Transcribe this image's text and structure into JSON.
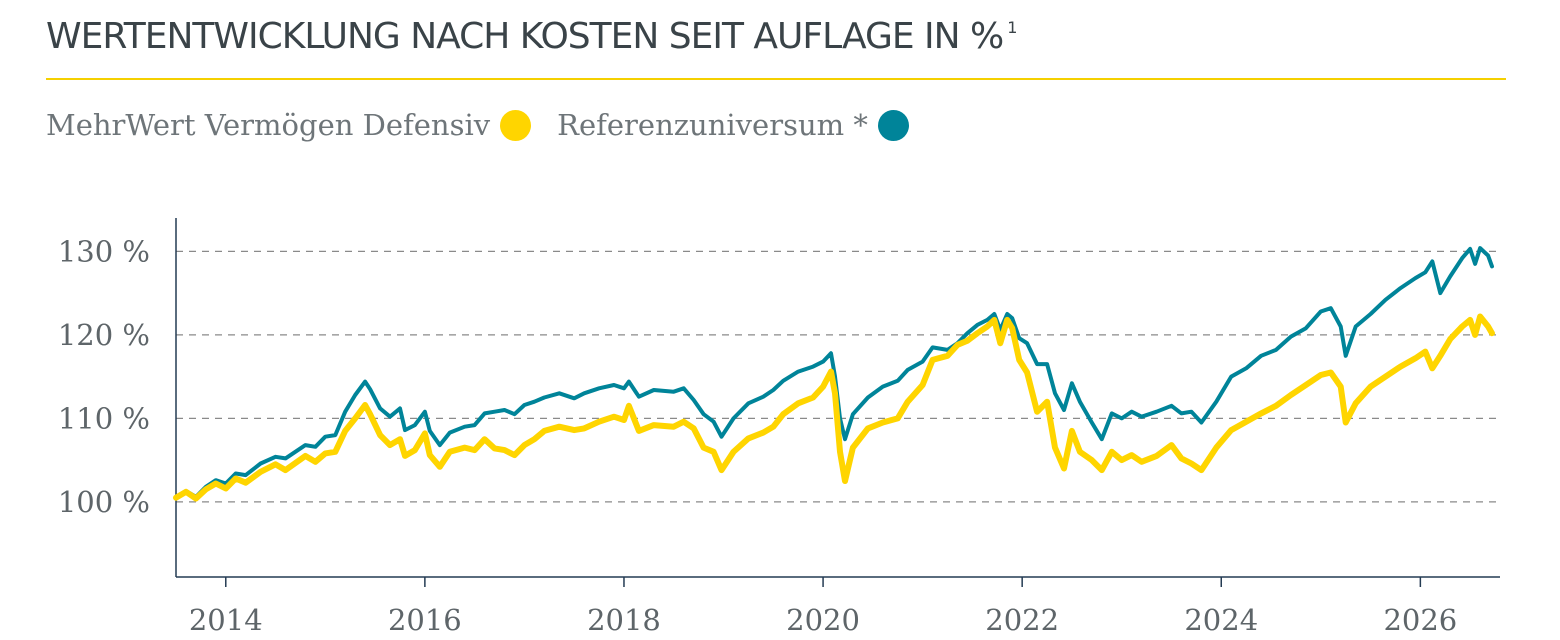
{
  "header": {
    "title": "WERTENTWICKLUNG NACH KOSTEN SEIT AUFLAGE IN %",
    "footnote_mark": "1"
  },
  "legend": {
    "items": [
      {
        "label": "MehrWert Vermögen Defensiv",
        "color": "#ffd500"
      },
      {
        "label": "Referenzuniversum *",
        "color": "#008499"
      }
    ]
  },
  "chart_data": {
    "type": "line",
    "xlim": [
      2013.5,
      2026.8
    ],
    "ylim": [
      91,
      134
    ],
    "y_ticks": [
      {
        "value": 100,
        "label": "100 %"
      },
      {
        "value": 110,
        "label": "110 %"
      },
      {
        "value": 120,
        "label": "120 %"
      },
      {
        "value": 130,
        "label": "130 %"
      }
    ],
    "x_ticks": [
      {
        "value": 2014,
        "label": "2014"
      },
      {
        "value": 2016,
        "label": "2016"
      },
      {
        "value": 2018,
        "label": "2018"
      },
      {
        "value": 2020,
        "label": "2020"
      },
      {
        "value": 2022,
        "label": "2022"
      },
      {
        "value": 2024,
        "label": "2024"
      },
      {
        "value": 2026,
        "label": "2026"
      }
    ],
    "grid": "horizontal-dashed",
    "series": [
      {
        "name": "MehrWert Vermögen Defensiv",
        "color": "#ffd500",
        "points": [
          [
            2013.5,
            100.5
          ],
          [
            2013.6,
            101.2
          ],
          [
            2013.7,
            100.4
          ],
          [
            2013.8,
            101.5
          ],
          [
            2013.9,
            102.2
          ],
          [
            2014.0,
            101.6
          ],
          [
            2014.1,
            102.8
          ],
          [
            2014.2,
            102.3
          ],
          [
            2014.35,
            103.6
          ],
          [
            2014.5,
            104.5
          ],
          [
            2014.6,
            103.8
          ],
          [
            2014.8,
            105.5
          ],
          [
            2014.9,
            104.8
          ],
          [
            2015.0,
            105.8
          ],
          [
            2015.1,
            106.0
          ],
          [
            2015.2,
            108.5
          ],
          [
            2015.3,
            110.0
          ],
          [
            2015.4,
            111.6
          ],
          [
            2015.45,
            110.5
          ],
          [
            2015.55,
            108.0
          ],
          [
            2015.65,
            106.8
          ],
          [
            2015.75,
            107.5
          ],
          [
            2015.8,
            105.5
          ],
          [
            2015.9,
            106.2
          ],
          [
            2016.0,
            108.2
          ],
          [
            2016.05,
            105.6
          ],
          [
            2016.15,
            104.2
          ],
          [
            2016.25,
            106.0
          ],
          [
            2016.4,
            106.5
          ],
          [
            2016.5,
            106.2
          ],
          [
            2016.6,
            107.5
          ],
          [
            2016.7,
            106.4
          ],
          [
            2016.8,
            106.2
          ],
          [
            2016.9,
            105.6
          ],
          [
            2017.0,
            106.8
          ],
          [
            2017.1,
            107.5
          ],
          [
            2017.2,
            108.5
          ],
          [
            2017.35,
            109.0
          ],
          [
            2017.5,
            108.6
          ],
          [
            2017.6,
            108.8
          ],
          [
            2017.75,
            109.6
          ],
          [
            2017.9,
            110.2
          ],
          [
            2018.0,
            109.8
          ],
          [
            2018.05,
            111.5
          ],
          [
            2018.15,
            108.5
          ],
          [
            2018.3,
            109.2
          ],
          [
            2018.5,
            109.0
          ],
          [
            2018.6,
            109.6
          ],
          [
            2018.7,
            108.8
          ],
          [
            2018.8,
            106.5
          ],
          [
            2018.9,
            106.0
          ],
          [
            2018.98,
            103.8
          ],
          [
            2019.1,
            106.0
          ],
          [
            2019.25,
            107.6
          ],
          [
            2019.4,
            108.3
          ],
          [
            2019.5,
            109.0
          ],
          [
            2019.6,
            110.5
          ],
          [
            2019.75,
            111.8
          ],
          [
            2019.9,
            112.5
          ],
          [
            2020.0,
            113.8
          ],
          [
            2020.08,
            115.6
          ],
          [
            2020.12,
            113.0
          ],
          [
            2020.17,
            106.0
          ],
          [
            2020.22,
            102.5
          ],
          [
            2020.3,
            106.5
          ],
          [
            2020.45,
            108.8
          ],
          [
            2020.6,
            109.5
          ],
          [
            2020.75,
            110.0
          ],
          [
            2020.85,
            112.0
          ],
          [
            2021.0,
            114.0
          ],
          [
            2021.1,
            117.0
          ],
          [
            2021.25,
            117.5
          ],
          [
            2021.35,
            118.8
          ],
          [
            2021.45,
            119.3
          ],
          [
            2021.55,
            120.2
          ],
          [
            2021.65,
            121.0
          ],
          [
            2021.72,
            121.8
          ],
          [
            2021.78,
            119.0
          ],
          [
            2021.85,
            121.8
          ],
          [
            2021.9,
            120.8
          ],
          [
            2021.97,
            117.0
          ],
          [
            2022.05,
            115.5
          ],
          [
            2022.15,
            110.8
          ],
          [
            2022.25,
            112.0
          ],
          [
            2022.33,
            106.5
          ],
          [
            2022.42,
            104.0
          ],
          [
            2022.5,
            108.5
          ],
          [
            2022.58,
            106.0
          ],
          [
            2022.7,
            105.0
          ],
          [
            2022.8,
            103.8
          ],
          [
            2022.9,
            106.0
          ],
          [
            2023.0,
            105.0
          ],
          [
            2023.1,
            105.6
          ],
          [
            2023.2,
            104.8
          ],
          [
            2023.35,
            105.5
          ],
          [
            2023.5,
            106.8
          ],
          [
            2023.6,
            105.2
          ],
          [
            2023.7,
            104.6
          ],
          [
            2023.8,
            103.8
          ],
          [
            2023.95,
            106.5
          ],
          [
            2024.1,
            108.6
          ],
          [
            2024.25,
            109.6
          ],
          [
            2024.4,
            110.6
          ],
          [
            2024.55,
            111.5
          ],
          [
            2024.7,
            112.8
          ],
          [
            2024.85,
            114.0
          ],
          [
            2025.0,
            115.2
          ],
          [
            2025.1,
            115.5
          ],
          [
            2025.2,
            113.8
          ],
          [
            2025.25,
            109.5
          ],
          [
            2025.35,
            111.8
          ],
          [
            2025.5,
            113.8
          ],
          [
            2025.65,
            115.0
          ],
          [
            2025.8,
            116.2
          ],
          [
            2025.95,
            117.2
          ],
          [
            2026.05,
            118.0
          ],
          [
            2026.12,
            116.0
          ],
          [
            2026.2,
            117.5
          ],
          [
            2026.3,
            119.5
          ],
          [
            2026.42,
            121.0
          ],
          [
            2026.5,
            121.8
          ],
          [
            2026.55,
            120.0
          ],
          [
            2026.6,
            122.2
          ],
          [
            2026.68,
            121.0
          ],
          [
            2026.72,
            120.2
          ]
        ]
      },
      {
        "name": "Referenzuniversum *",
        "color": "#008499",
        "points": [
          [
            2013.5,
            100.6
          ],
          [
            2013.6,
            101.3
          ],
          [
            2013.7,
            100.6
          ],
          [
            2013.8,
            101.8
          ],
          [
            2013.9,
            102.6
          ],
          [
            2014.0,
            102.2
          ],
          [
            2014.1,
            103.4
          ],
          [
            2014.2,
            103.2
          ],
          [
            2014.35,
            104.6
          ],
          [
            2014.5,
            105.4
          ],
          [
            2014.6,
            105.2
          ],
          [
            2014.8,
            106.8
          ],
          [
            2014.9,
            106.6
          ],
          [
            2015.0,
            107.8
          ],
          [
            2015.1,
            108.0
          ],
          [
            2015.2,
            110.8
          ],
          [
            2015.3,
            112.8
          ],
          [
            2015.4,
            114.4
          ],
          [
            2015.45,
            113.5
          ],
          [
            2015.55,
            111.2
          ],
          [
            2015.65,
            110.2
          ],
          [
            2015.75,
            111.2
          ],
          [
            2015.8,
            108.6
          ],
          [
            2015.9,
            109.2
          ],
          [
            2016.0,
            110.8
          ],
          [
            2016.05,
            108.5
          ],
          [
            2016.15,
            106.8
          ],
          [
            2016.25,
            108.3
          ],
          [
            2016.4,
            109.0
          ],
          [
            2016.5,
            109.2
          ],
          [
            2016.6,
            110.6
          ],
          [
            2016.7,
            110.8
          ],
          [
            2016.8,
            111.0
          ],
          [
            2016.9,
            110.5
          ],
          [
            2017.0,
            111.6
          ],
          [
            2017.1,
            112.0
          ],
          [
            2017.2,
            112.5
          ],
          [
            2017.35,
            113.0
          ],
          [
            2017.5,
            112.4
          ],
          [
            2017.6,
            113.0
          ],
          [
            2017.75,
            113.6
          ],
          [
            2017.9,
            114.0
          ],
          [
            2018.0,
            113.6
          ],
          [
            2018.05,
            114.4
          ],
          [
            2018.15,
            112.6
          ],
          [
            2018.3,
            113.4
          ],
          [
            2018.5,
            113.2
          ],
          [
            2018.6,
            113.6
          ],
          [
            2018.7,
            112.2
          ],
          [
            2018.8,
            110.5
          ],
          [
            2018.9,
            109.6
          ],
          [
            2018.98,
            107.8
          ],
          [
            2019.1,
            110.0
          ],
          [
            2019.25,
            111.8
          ],
          [
            2019.4,
            112.6
          ],
          [
            2019.5,
            113.4
          ],
          [
            2019.6,
            114.5
          ],
          [
            2019.75,
            115.6
          ],
          [
            2019.9,
            116.2
          ],
          [
            2020.0,
            116.8
          ],
          [
            2020.08,
            117.8
          ],
          [
            2020.12,
            115.0
          ],
          [
            2020.17,
            110.0
          ],
          [
            2020.22,
            107.5
          ],
          [
            2020.3,
            110.5
          ],
          [
            2020.45,
            112.5
          ],
          [
            2020.6,
            113.8
          ],
          [
            2020.75,
            114.5
          ],
          [
            2020.85,
            115.8
          ],
          [
            2021.0,
            116.8
          ],
          [
            2021.1,
            118.5
          ],
          [
            2021.25,
            118.2
          ],
          [
            2021.35,
            119.0
          ],
          [
            2021.45,
            120.2
          ],
          [
            2021.55,
            121.2
          ],
          [
            2021.65,
            121.8
          ],
          [
            2021.72,
            122.5
          ],
          [
            2021.78,
            120.6
          ],
          [
            2021.85,
            122.5
          ],
          [
            2021.9,
            122.0
          ],
          [
            2021.97,
            119.6
          ],
          [
            2022.05,
            119.0
          ],
          [
            2022.15,
            116.5
          ],
          [
            2022.25,
            116.5
          ],
          [
            2022.33,
            113.0
          ],
          [
            2022.42,
            111.0
          ],
          [
            2022.5,
            114.2
          ],
          [
            2022.58,
            112.0
          ],
          [
            2022.7,
            109.5
          ],
          [
            2022.8,
            107.5
          ],
          [
            2022.9,
            110.6
          ],
          [
            2023.0,
            110.0
          ],
          [
            2023.1,
            110.8
          ],
          [
            2023.2,
            110.2
          ],
          [
            2023.35,
            110.8
          ],
          [
            2023.5,
            111.5
          ],
          [
            2023.6,
            110.6
          ],
          [
            2023.7,
            110.8
          ],
          [
            2023.8,
            109.5
          ],
          [
            2023.95,
            112.0
          ],
          [
            2024.1,
            115.0
          ],
          [
            2024.25,
            116.0
          ],
          [
            2024.4,
            117.5
          ],
          [
            2024.55,
            118.2
          ],
          [
            2024.7,
            119.8
          ],
          [
            2024.85,
            120.8
          ],
          [
            2025.0,
            122.8
          ],
          [
            2025.1,
            123.2
          ],
          [
            2025.2,
            121.0
          ],
          [
            2025.25,
            117.5
          ],
          [
            2025.35,
            121.0
          ],
          [
            2025.5,
            122.5
          ],
          [
            2025.65,
            124.2
          ],
          [
            2025.8,
            125.6
          ],
          [
            2025.95,
            126.8
          ],
          [
            2026.05,
            127.5
          ],
          [
            2026.12,
            128.8
          ],
          [
            2026.2,
            125.0
          ],
          [
            2026.3,
            127.0
          ],
          [
            2026.42,
            129.2
          ],
          [
            2026.5,
            130.3
          ],
          [
            2026.55,
            128.5
          ],
          [
            2026.6,
            130.4
          ],
          [
            2026.68,
            129.5
          ],
          [
            2026.72,
            128.2
          ]
        ]
      }
    ]
  }
}
